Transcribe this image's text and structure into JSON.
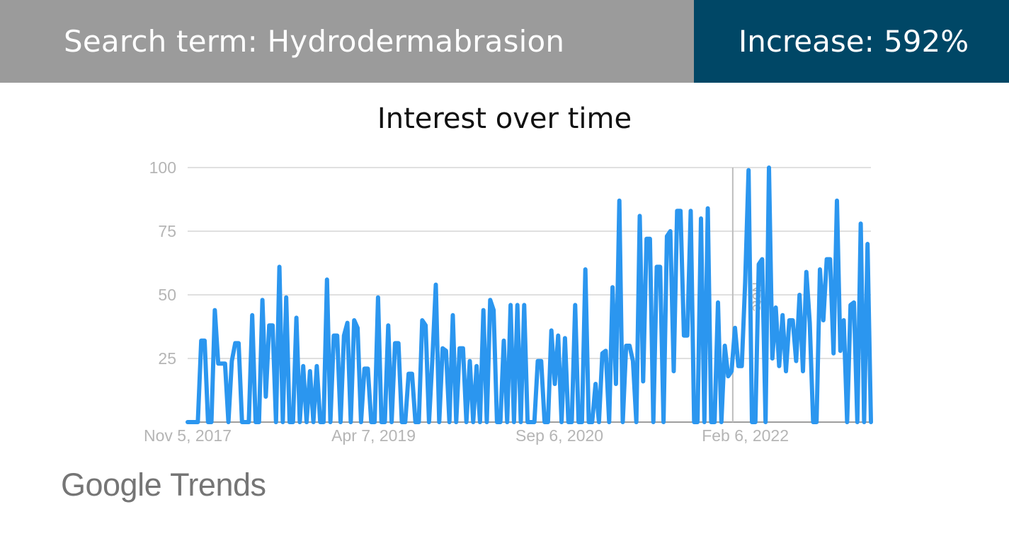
{
  "header": {
    "search_term": "Search term: Hydrodermabrasion",
    "increase": "Increase: 592%"
  },
  "logo": {
    "brand": "Google",
    "product": "Trends"
  },
  "colors": {
    "banner_left": "#9b9b9b",
    "banner_right": "#004766",
    "series": "#2b96ef",
    "grid": "#e0e0e0",
    "tick": "#b5b5b5"
  },
  "chart_data": {
    "type": "line",
    "title": "Interest over time",
    "xlabel": "",
    "ylabel": "",
    "ylim": [
      0,
      100
    ],
    "y_ticks": [
      25,
      50,
      75,
      100
    ],
    "x_range": [
      "2017-11-05",
      "2023-01-22"
    ],
    "x_ticks": [
      {
        "date": "2017-11-05",
        "label": "Nov 5, 2017"
      },
      {
        "date": "2019-04-07",
        "label": "Apr 7, 2019"
      },
      {
        "date": "2020-09-06",
        "label": "Sep 6, 2020"
      },
      {
        "date": "2022-02-06",
        "label": "Feb 6, 2022"
      }
    ],
    "grid": true,
    "legend": "none",
    "annotation": {
      "date": "2022-01-02",
      "label": "Note"
    },
    "series": [
      {
        "values": [
          0,
          0,
          0,
          0,
          32,
          32,
          0,
          0,
          44,
          23,
          23,
          23,
          0,
          24,
          31,
          31,
          0,
          0,
          0,
          42,
          0,
          0,
          48,
          10,
          38,
          38,
          0,
          61,
          0,
          49,
          0,
          0,
          41,
          0,
          22,
          0,
          20,
          0,
          22,
          0,
          0,
          56,
          0,
          34,
          34,
          0,
          34,
          39,
          0,
          40,
          37,
          0,
          21,
          21,
          0,
          0,
          49,
          0,
          0,
          38,
          0,
          31,
          31,
          0,
          0,
          19,
          19,
          0,
          0,
          40,
          38,
          0,
          25,
          54,
          0,
          29,
          28,
          0,
          42,
          0,
          29,
          29,
          0,
          24,
          0,
          22,
          0,
          44,
          0,
          48,
          44,
          0,
          0,
          32,
          0,
          46,
          0,
          46,
          0,
          46,
          0,
          0,
          0,
          24,
          24,
          0,
          0,
          36,
          15,
          34,
          0,
          33,
          0,
          0,
          46,
          0,
          0,
          60,
          0,
          0,
          15,
          0,
          27,
          28,
          0,
          53,
          15,
          87,
          0,
          30,
          30,
          24,
          0,
          81,
          16,
          72,
          72,
          0,
          61,
          61,
          0,
          73,
          75,
          20,
          83,
          83,
          34,
          34,
          83,
          0,
          0,
          80,
          0,
          84,
          0,
          0,
          47,
          0,
          30,
          18,
          20,
          37,
          22,
          22,
          55,
          99,
          0,
          0,
          62,
          64,
          0,
          100,
          25,
          45,
          22,
          42,
          20,
          40,
          40,
          24,
          50,
          20,
          59,
          39,
          0,
          0,
          60,
          40,
          64,
          64,
          27,
          87,
          28,
          40,
          0,
          46,
          47,
          0,
          78,
          0,
          70,
          0
        ]
      }
    ]
  }
}
